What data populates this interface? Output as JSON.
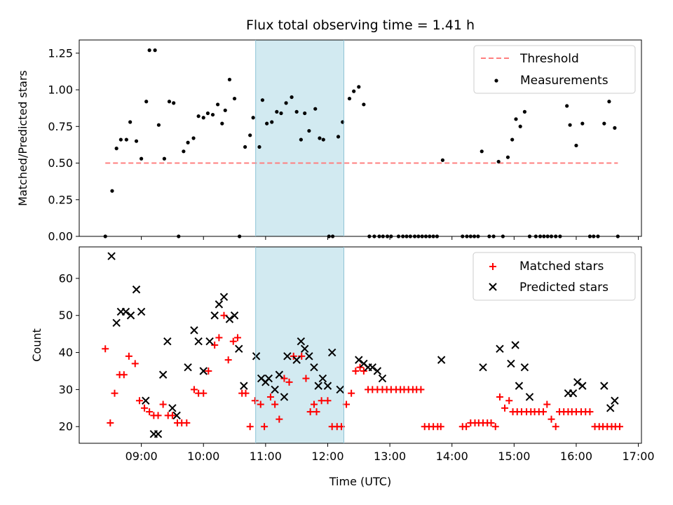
{
  "chart_data": [
    {
      "type": "scatter",
      "title": "Flux total observing time = 1.41 h",
      "xlabel": "",
      "ylabel": "Matched/Predicted stars",
      "xlim": [
        8.0,
        17.05
      ],
      "ylim": [
        0.0,
        1.34
      ],
      "yticks": [
        0.0,
        0.25,
        0.5,
        0.75,
        1.0,
        1.25
      ],
      "ytick_labels": [
        "0.00",
        "0.25",
        "0.50",
        "0.75",
        "1.00",
        "1.25"
      ],
      "grid": false,
      "legend_position": "top-right",
      "shaded_span": [
        10.84,
        12.26
      ],
      "shaded_color": "#add8e6",
      "series": [
        {
          "name": "Threshold",
          "kind": "line",
          "style": "dashed",
          "color": "#ff7f7f",
          "x": [
            8.42,
            16.67
          ],
          "y": [
            0.5,
            0.5
          ]
        },
        {
          "name": "Measurements",
          "kind": "scatter",
          "marker": "dot",
          "color": "#000000",
          "x": [
            8.42,
            8.53,
            8.6,
            8.67,
            8.76,
            8.82,
            8.92,
            9.0,
            9.08,
            9.13,
            9.22,
            9.28,
            9.37,
            9.45,
            9.52,
            9.6,
            9.68,
            9.75,
            9.84,
            9.92,
            10.0,
            10.07,
            10.15,
            10.23,
            10.3,
            10.35,
            10.42,
            10.5,
            10.58,
            10.67,
            10.75,
            10.8,
            10.9,
            10.95,
            11.02,
            11.1,
            11.18,
            11.25,
            11.33,
            11.42,
            11.5,
            11.57,
            11.63,
            11.7,
            11.8,
            11.87,
            11.93,
            12.02,
            12.08,
            12.17,
            12.24,
            12.35,
            12.42,
            12.5,
            12.58,
            12.67,
            12.75,
            12.83,
            12.89,
            12.96,
            13.02,
            13.14,
            13.21,
            13.27,
            13.33,
            13.4,
            13.46,
            13.52,
            13.58,
            13.64,
            13.7,
            13.76,
            13.85,
            14.17,
            14.24,
            14.3,
            14.36,
            14.42,
            14.48,
            14.6,
            14.67,
            14.75,
            14.82,
            14.9,
            14.97,
            15.03,
            15.1,
            15.17,
            15.25,
            15.35,
            15.42,
            15.48,
            15.54,
            15.6,
            15.67,
            15.74,
            15.85,
            15.9,
            16.0,
            16.1,
            16.22,
            16.28,
            16.35,
            16.45,
            16.53,
            16.62,
            16.67
          ],
          "y": [
            0.0,
            0.31,
            0.6,
            0.66,
            0.66,
            0.78,
            0.65,
            0.53,
            0.92,
            1.27,
            1.27,
            0.76,
            0.53,
            0.92,
            0.91,
            0.0,
            0.58,
            0.64,
            0.67,
            0.82,
            0.81,
            0.84,
            0.83,
            0.9,
            0.77,
            0.86,
            1.07,
            0.94,
            0.0,
            0.61,
            0.69,
            0.81,
            0.61,
            0.93,
            0.77,
            0.78,
            0.85,
            0.84,
            0.91,
            0.95,
            0.85,
            0.66,
            0.84,
            0.72,
            0.87,
            0.67,
            0.66,
            0.0,
            0.0,
            0.68,
            0.78,
            0.94,
            0.99,
            1.02,
            0.9,
            0.0,
            0.0,
            0.0,
            0.0,
            0.0,
            0.0,
            0.0,
            0.0,
            0.0,
            0.0,
            0.0,
            0.0,
            0.0,
            0.0,
            0.0,
            0.0,
            0.0,
            0.52,
            0.0,
            0.0,
            0.0,
            0.0,
            0.0,
            0.58,
            0.0,
            0.0,
            0.51,
            0.0,
            0.54,
            0.66,
            0.8,
            0.75,
            0.85,
            0.0,
            0.0,
            0.0,
            0.0,
            0.0,
            0.0,
            0.0,
            0.0,
            0.89,
            0.76,
            0.62,
            0.77,
            0.0,
            0.0,
            0.0,
            0.77,
            0.92,
            0.74,
            0.0
          ]
        }
      ]
    },
    {
      "type": "scatter",
      "title": "",
      "xlabel": "Time (UTC)",
      "ylabel": "Count",
      "xlim": [
        8.0,
        17.05
      ],
      "ylim": [
        15.5,
        68.5
      ],
      "yticks": [
        20,
        30,
        40,
        50,
        60
      ],
      "ytick_labels": [
        "20",
        "30",
        "40",
        "50",
        "60"
      ],
      "xticks": [
        9,
        10,
        11,
        12,
        13,
        14,
        15,
        16,
        17
      ],
      "xtick_labels": [
        "09:00",
        "10:00",
        "11:00",
        "12:00",
        "13:00",
        "14:00",
        "15:00",
        "16:00",
        "17:00"
      ],
      "grid": false,
      "legend_position": "top-right",
      "shaded_span": [
        10.84,
        12.26
      ],
      "shaded_color": "#add8e6",
      "series": [
        {
          "name": "Matched stars",
          "kind": "scatter",
          "marker": "plus",
          "color": "#ff0000",
          "x": [
            8.42,
            8.5,
            8.57,
            8.65,
            8.72,
            8.8,
            8.9,
            8.97,
            9.05,
            9.13,
            9.2,
            9.27,
            9.35,
            9.43,
            9.5,
            9.58,
            9.65,
            9.73,
            9.85,
            9.92,
            10.0,
            10.08,
            10.18,
            10.25,
            10.33,
            10.4,
            10.48,
            10.55,
            10.62,
            10.68,
            10.75,
            10.83,
            10.92,
            10.98,
            11.08,
            11.15,
            11.22,
            11.3,
            11.38,
            11.45,
            11.58,
            11.65,
            11.72,
            11.78,
            11.82,
            11.9,
            12.0,
            12.07,
            12.15,
            12.22,
            12.3,
            12.38,
            12.45,
            12.52,
            12.58,
            12.65,
            12.72,
            12.8,
            12.88,
            12.95,
            13.02,
            13.1,
            13.17,
            13.23,
            13.3,
            13.37,
            13.43,
            13.5,
            13.56,
            13.63,
            13.7,
            13.77,
            13.82,
            14.17,
            14.23,
            14.3,
            14.37,
            14.43,
            14.5,
            14.57,
            14.63,
            14.7,
            14.77,
            14.85,
            14.92,
            14.98,
            15.05,
            15.12,
            15.2,
            15.27,
            15.33,
            15.4,
            15.47,
            15.53,
            15.6,
            15.67,
            15.73,
            15.8,
            15.87,
            15.93,
            16.0,
            16.08,
            16.15,
            16.22,
            16.3,
            16.37,
            16.43,
            16.5,
            16.57,
            16.63,
            16.7
          ],
          "y": [
            41,
            21,
            29,
            34,
            34,
            39,
            37,
            27,
            25,
            24,
            23,
            23,
            26,
            23,
            23,
            21,
            21,
            21,
            30,
            29,
            29,
            35,
            42,
            44,
            50,
            38,
            43,
            44,
            29,
            29,
            20,
            27,
            26,
            20,
            28,
            26,
            22,
            33,
            32,
            39,
            39,
            33,
            24,
            26,
            24,
            27,
            27,
            20,
            20,
            20,
            26,
            29,
            35,
            36,
            35,
            30,
            30,
            30,
            30,
            30,
            30,
            30,
            30,
            30,
            30,
            30,
            30,
            30,
            20,
            20,
            20,
            20,
            20,
            20,
            20,
            21,
            21,
            21,
            21,
            21,
            21,
            20,
            28,
            25,
            27,
            24,
            24,
            24,
            24,
            24,
            24,
            24,
            24,
            26,
            22,
            20,
            24,
            24,
            24,
            24,
            24,
            24,
            24,
            24,
            20,
            20,
            20,
            20,
            20,
            20,
            20
          ],
          "note": ""
        },
        {
          "name": "Predicted stars",
          "kind": "scatter",
          "marker": "x",
          "color": "#000000",
          "x": [
            8.52,
            8.6,
            8.67,
            8.75,
            8.83,
            8.92,
            9.0,
            9.07,
            9.2,
            9.27,
            9.35,
            9.42,
            9.5,
            9.57,
            9.75,
            9.85,
            9.92,
            10.0,
            10.1,
            10.18,
            10.25,
            10.33,
            10.42,
            10.5,
            10.57,
            10.65,
            10.93,
            10.85,
            11.0,
            11.05,
            11.15,
            11.22,
            11.3,
            11.35,
            11.5,
            11.57,
            11.63,
            11.7,
            11.78,
            11.85,
            11.92,
            12.0,
            12.07,
            12.2,
            12.5,
            12.58,
            12.65,
            12.72,
            12.8,
            12.88,
            13.83,
            14.5,
            14.77,
            14.95,
            15.02,
            15.08,
            15.17,
            15.25,
            15.87,
            15.95,
            16.02,
            16.1,
            16.45,
            16.55,
            16.62
          ],
          "y": [
            66,
            48,
            51,
            51,
            50,
            57,
            51,
            27,
            18,
            18,
            34,
            43,
            25,
            23,
            36,
            46,
            43,
            35,
            43,
            50,
            53,
            55,
            49,
            50,
            41,
            31,
            33,
            39,
            32,
            33,
            30,
            34,
            28,
            39,
            38,
            43,
            41,
            39,
            36,
            31,
            33,
            31,
            40,
            30,
            38,
            37,
            36,
            36,
            35,
            33,
            38,
            36,
            41,
            37,
            42,
            31,
            36,
            28,
            29,
            29,
            32,
            31,
            31,
            25,
            27
          ]
        }
      ]
    }
  ]
}
